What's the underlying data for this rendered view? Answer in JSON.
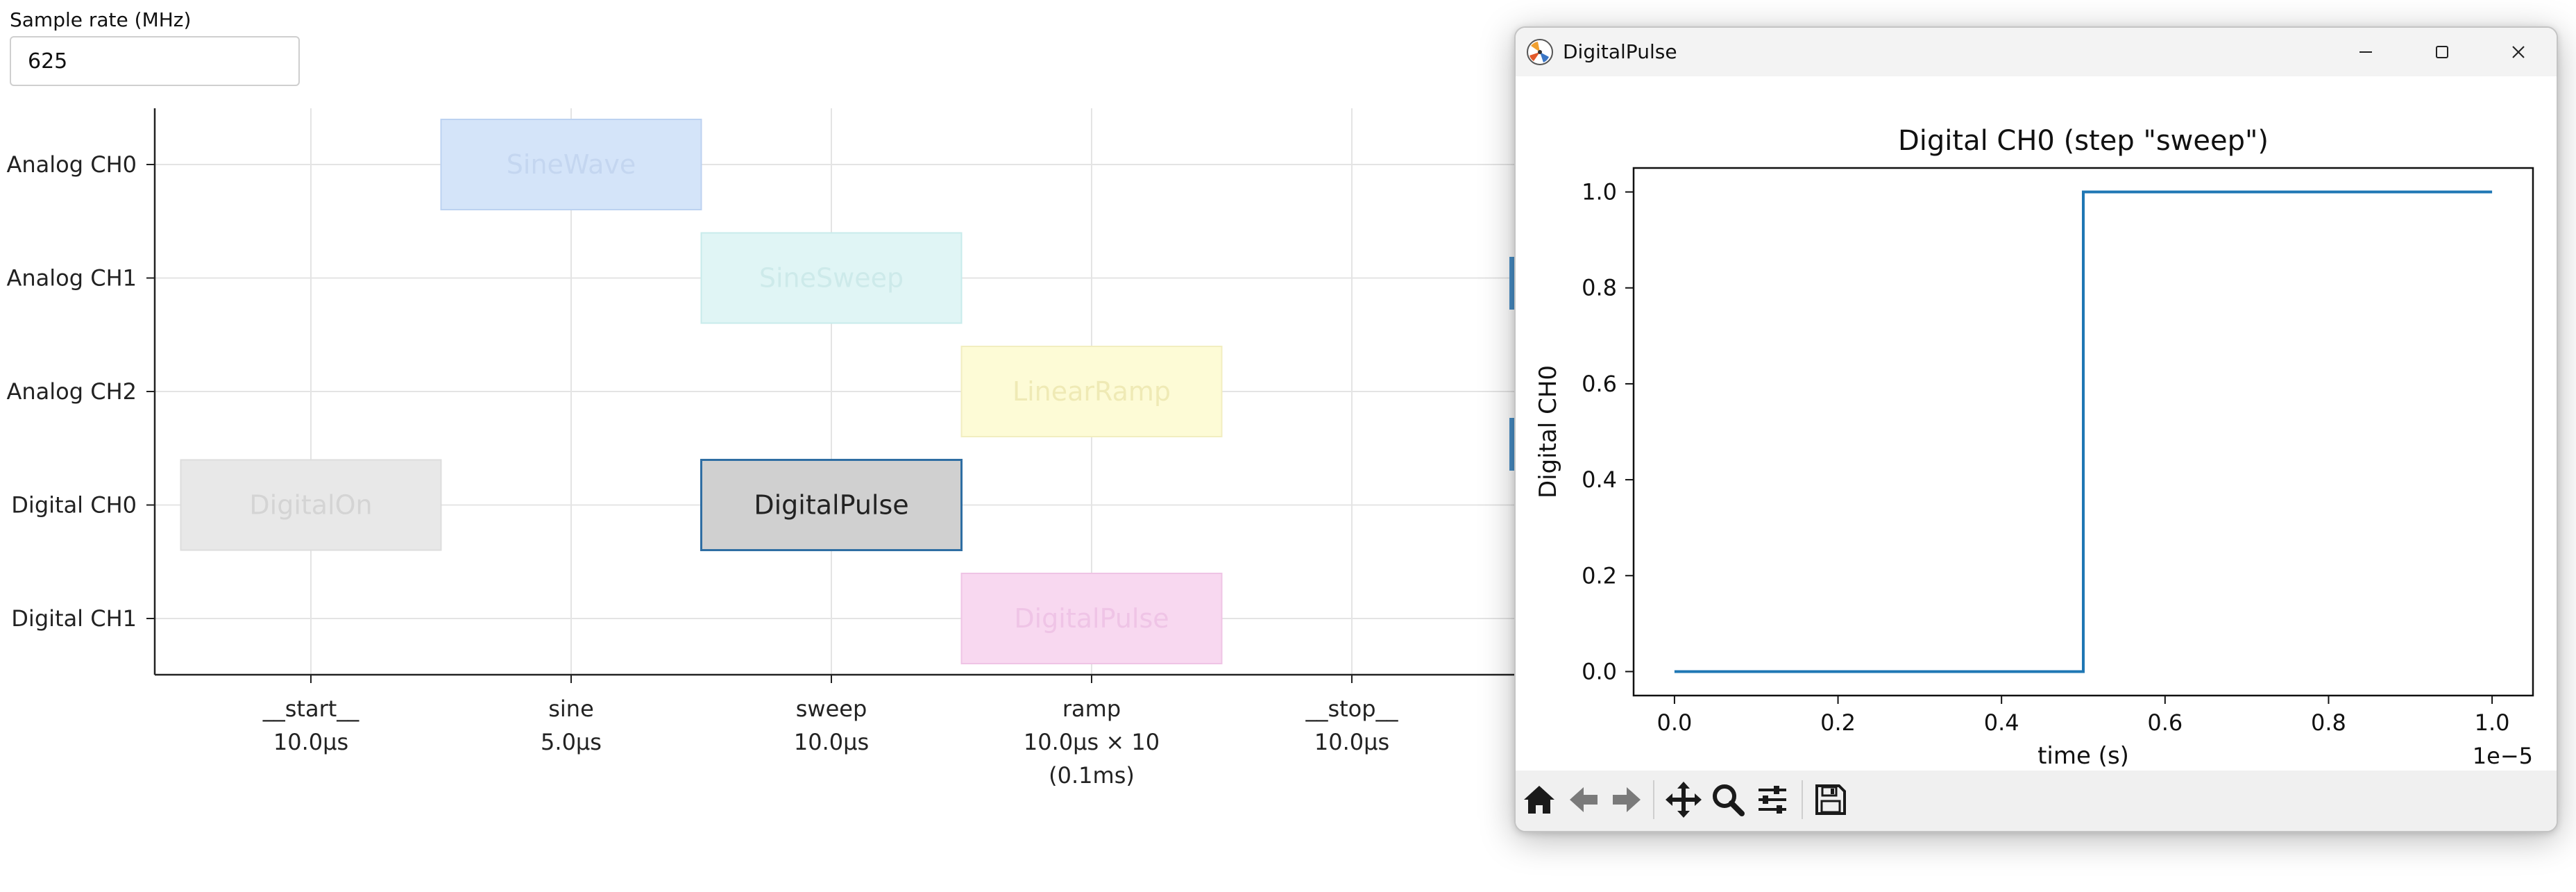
{
  "sample_rate": {
    "label": "Sample rate (MHz)",
    "value": "625"
  },
  "timeline": {
    "channels": [
      "Analog CH0",
      "Analog CH1",
      "Analog CH2",
      "Digital CH0",
      "Digital CH1"
    ],
    "steps": [
      {
        "name": "__start__",
        "duration": "10.0µs",
        "extra": ""
      },
      {
        "name": "sine",
        "duration": "5.0µs",
        "extra": ""
      },
      {
        "name": "sweep",
        "duration": "10.0µs",
        "extra": ""
      },
      {
        "name": "ramp",
        "duration": "10.0µs × 10",
        "extra": "(0.1ms)"
      },
      {
        "name": "__stop__",
        "duration": "10.0µs",
        "extra": ""
      }
    ],
    "blocks": [
      {
        "label": "SineWave",
        "channel": 0,
        "step": 1,
        "state": "faded",
        "fill": "#d4e4f9",
        "stroke": "#bcd2f1",
        "text_color": "#c4d6f0"
      },
      {
        "label": "SineSweep",
        "channel": 1,
        "step": 2,
        "state": "faded",
        "fill": "#e0f5f5",
        "stroke": "#c8ebeb",
        "text_color": "#cdeaea"
      },
      {
        "label": "LinearRamp",
        "channel": 2,
        "step": 3,
        "state": "faded",
        "fill": "#fdfbd6",
        "stroke": "#f2eec0",
        "text_color": "#efeab5"
      },
      {
        "label": "DigitalOn",
        "channel": 3,
        "step": 0,
        "state": "faded",
        "fill": "#e8e8e8",
        "stroke": "#dddddd",
        "text_color": "#d4d4d4"
      },
      {
        "label": "DigitalPulse",
        "channel": 3,
        "step": 2,
        "state": "selected",
        "fill": "#d0d0d0",
        "stroke": "#2f6ea3",
        "text_color": "#222222"
      },
      {
        "label": "DigitalPulse",
        "channel": 4,
        "step": 3,
        "state": "faded",
        "fill": "#f8d8f0",
        "stroke": "#efc4e5",
        "text_color": "#efc4e6"
      }
    ]
  },
  "window": {
    "title": "DigitalPulse",
    "controls": {
      "minimize": "minimize",
      "maximize": "maximize",
      "close": "close"
    },
    "toolbar_tools": [
      "home-icon",
      "back-arrow-icon",
      "forward-arrow-icon",
      "pan-icon",
      "zoom-icon",
      "configure-subplots-icon",
      "save-icon"
    ]
  },
  "chart_data": {
    "type": "line",
    "title": "Digital CH0 (step \"sweep\")",
    "xlabel": "time (s)",
    "ylabel": "Digital CH0",
    "x_offset_text": "1e−5",
    "x_ticks": [
      "0.0",
      "0.2",
      "0.4",
      "0.6",
      "0.8",
      "1.0"
    ],
    "y_ticks": [
      "0.0",
      "0.2",
      "0.4",
      "0.6",
      "0.8",
      "1.0"
    ],
    "xlim": [
      -0.05,
      1.05
    ],
    "ylim": [
      -0.05,
      1.05
    ],
    "grid": false,
    "series": [
      {
        "name": "Digital CH0",
        "color": "#1f77b4",
        "x": [
          0.0,
          0.5,
          0.5,
          1.0
        ],
        "y": [
          0,
          0,
          1,
          1
        ]
      }
    ]
  }
}
